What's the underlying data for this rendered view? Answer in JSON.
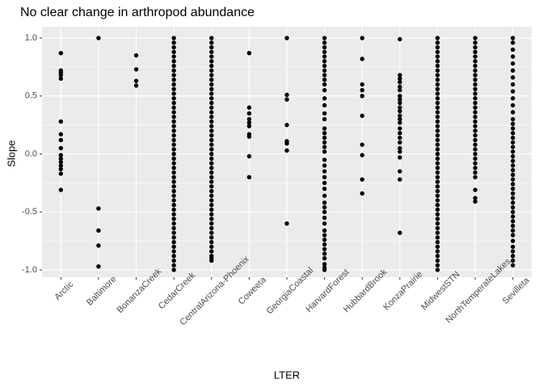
{
  "chart_data": {
    "type": "strip",
    "title": "No clear change in arthropod abundance",
    "x_label": "LTER",
    "y_label": "Slope",
    "categories": [
      "Arctic",
      "Baltimore",
      "BonanzaCreek",
      "CedarCreek",
      "CentralArizona-Phoenix",
      "Coweeta",
      "GeorgiaCoastal",
      "HarvardForest",
      "HubbardBrook",
      "KonzaPrairie",
      "MidwestSTN",
      "NorthTemperateLakes",
      "Sevilleta"
    ],
    "values": [
      [
        0.87,
        0.72,
        0.7,
        0.68,
        0.65,
        0.28,
        0.17,
        0.12,
        0.05,
        -0.01,
        -0.04,
        -0.07,
        -0.1,
        -0.13,
        -0.17,
        -0.31
      ],
      [
        1,
        -0.47,
        -0.66,
        -0.79,
        -0.97
      ],
      [
        0.85,
        0.73,
        0.63,
        0.59
      ],
      [
        -1,
        -0.96,
        -0.92,
        -0.88,
        -0.84,
        -0.8,
        -0.76,
        -0.72,
        -0.68,
        -0.64,
        -0.6,
        -0.56,
        -0.52,
        -0.48,
        -0.44,
        -0.4,
        -0.36,
        -0.32,
        -0.28,
        -0.24,
        -0.2,
        -0.16,
        -0.12,
        -0.08,
        -0.04,
        0,
        0.04,
        0.08,
        0.12,
        0.16,
        0.2,
        0.24,
        0.28,
        0.32,
        0.36,
        0.4,
        0.44,
        0.48,
        0.52,
        0.56,
        0.6,
        0.64,
        0.68,
        0.72,
        0.76,
        0.8,
        0.84,
        0.88,
        0.92,
        0.96,
        1
      ],
      [
        -0.92,
        -0.9,
        -0.88,
        -0.84,
        -0.8,
        -0.76,
        -0.72,
        -0.68,
        -0.64,
        -0.6,
        -0.56,
        -0.52,
        -0.48,
        -0.44,
        -0.4,
        -0.36,
        -0.32,
        -0.28,
        -0.24,
        -0.2,
        -0.16,
        -0.12,
        -0.08,
        -0.04,
        0,
        0.04,
        0.08,
        0.12,
        0.16,
        0.2,
        0.24,
        0.28,
        0.32,
        0.36,
        0.4,
        0.44,
        0.48,
        0.52,
        0.56,
        0.6,
        0.64,
        0.68,
        0.72,
        0.76,
        0.8,
        0.84,
        0.88,
        0.92,
        0.96,
        1
      ],
      [
        0.87,
        0.4,
        0.35,
        0.3,
        0.27,
        0.24,
        0.17,
        0.15,
        -0.02,
        -0.2
      ],
      [
        1,
        0.51,
        0.47,
        0.25,
        0.11,
        0.09,
        0.03,
        -0.6
      ],
      [
        -1,
        -0.98,
        -0.95,
        -0.9,
        -0.86,
        -0.82,
        -0.78,
        -0.74,
        -0.7,
        -0.66,
        -0.6,
        -0.55,
        -0.5,
        -0.46,
        -0.42,
        -0.36,
        -0.3,
        -0.25,
        -0.2,
        -0.15,
        -0.1,
        -0.05,
        0.02,
        0.06,
        0.1,
        0.14,
        0.18,
        0.22,
        0.3,
        0.35,
        0.42,
        0.48,
        0.55,
        0.6,
        0.64,
        0.68,
        0.72,
        0.76,
        0.8,
        0.84,
        0.88,
        0.92,
        0.96,
        1
      ],
      [
        1,
        0.82,
        0.6,
        0.55,
        0.5,
        0.33,
        0.08,
        -0.01,
        -0.22,
        -0.34
      ],
      [
        0.99,
        0.68,
        0.65,
        0.62,
        0.58,
        0.55,
        0.5,
        0.47,
        0.44,
        0.4,
        0.37,
        0.33,
        0.3,
        0.27,
        0.22,
        0.18,
        0.14,
        0.1,
        0.05,
        0.02,
        -0.03,
        -0.15,
        -0.22,
        -0.68
      ],
      [
        -1,
        -0.96,
        -0.92,
        -0.88,
        -0.84,
        -0.8,
        -0.76,
        -0.72,
        -0.68,
        -0.64,
        -0.6,
        -0.56,
        -0.52,
        -0.48,
        -0.44,
        -0.4,
        -0.36,
        -0.32,
        -0.28,
        -0.24,
        -0.2,
        -0.16,
        -0.12,
        -0.08,
        -0.04,
        0,
        0.04,
        0.08,
        0.12,
        0.16,
        0.2,
        0.24,
        0.28,
        0.32,
        0.36,
        0.4,
        0.44,
        0.48,
        0.52,
        0.56,
        0.6,
        0.64,
        0.68,
        0.72,
        0.76,
        0.8,
        0.84,
        0.88,
        0.92,
        0.96,
        1
      ],
      [
        -0.41,
        -0.38,
        -0.31,
        -0.2,
        -0.16,
        -0.12,
        -0.08,
        -0.04,
        0,
        0.04,
        0.08,
        0.12,
        0.16,
        0.2,
        0.24,
        0.28,
        0.32,
        0.36,
        0.4,
        0.44,
        0.48,
        0.52,
        0.56,
        0.6,
        0.64,
        0.68,
        0.72,
        0.76,
        0.8,
        0.84,
        0.88,
        0.92,
        0.96,
        1
      ],
      [
        -0.96,
        -0.92,
        -0.88,
        -0.84,
        -0.8,
        -0.75,
        -0.7,
        -0.66,
        -0.62,
        -0.58,
        -0.54,
        -0.5,
        -0.46,
        -0.42,
        -0.38,
        -0.34,
        -0.3,
        -0.26,
        -0.22,
        -0.18,
        -0.14,
        -0.1,
        -0.06,
        -0.02,
        0.02,
        0.06,
        0.1,
        0.14,
        0.18,
        0.22,
        0.26,
        0.3,
        0.36,
        0.42,
        0.48,
        0.54,
        0.6,
        0.66,
        0.72,
        0.78,
        0.84,
        0.9,
        0.96,
        1
      ]
    ],
    "color": "#000000",
    "ylim": [
      -1.063,
      1.098
    ],
    "yticks": [
      {
        "value": -1,
        "label": "-1.0"
      },
      {
        "value": -0.5,
        "label": "-0.5"
      },
      {
        "value": 0,
        "label": "0.0"
      },
      {
        "value": 0.5,
        "label": "0.5"
      },
      {
        "value": 1,
        "label": "1.0"
      }
    ],
    "minor_yticks": [
      -0.75,
      -0.25,
      0.25,
      0.75
    ],
    "grid": true
  }
}
